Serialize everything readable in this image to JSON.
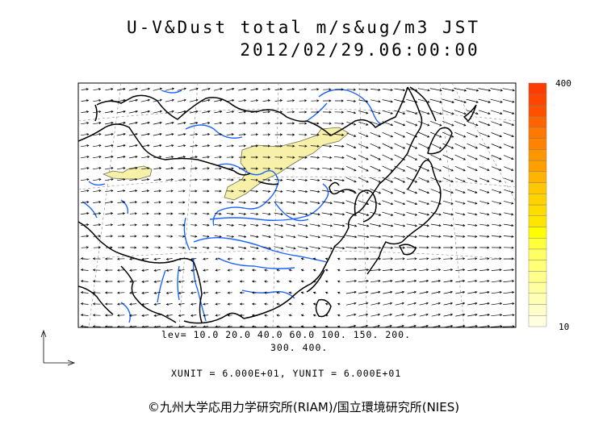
{
  "title": {
    "line1": "U-V&Dust total m/s&ug/m3 JST",
    "line2": "2012/02/29.06:00:00"
  },
  "colorbar": {
    "max_label": "400",
    "min_label": "10",
    "colors": [
      "#ffffe0",
      "#ffffc8",
      "#ffffb4",
      "#ffffa0",
      "#ffff8c",
      "#ffff78",
      "#ffff64",
      "#ffff3c",
      "#ffff00",
      "#ffe600",
      "#ffdc00",
      "#ffd200",
      "#ffc800",
      "#ffb400",
      "#ffa000",
      "#ff9600",
      "#ff8200",
      "#ff7800",
      "#ff6400",
      "#ff5000",
      "#ff4600",
      "#ff3c00"
    ]
  },
  "legend": {
    "levels_line1": "lev= 10.0 20.0 40.0 60.0 100. 150. 200.",
    "levels_line2": "300. 400.",
    "units": "XUNIT = 6.000E+01, YUNIT = 6.000E+01"
  },
  "copyright": "©九州大学応用力学研究所(RIAM)/国立環境研究所(NIES)",
  "colors": {
    "coastline": "#000000",
    "rivers": "#1e64ff",
    "dust": "#f6f0a8",
    "vectors": "#000000"
  }
}
